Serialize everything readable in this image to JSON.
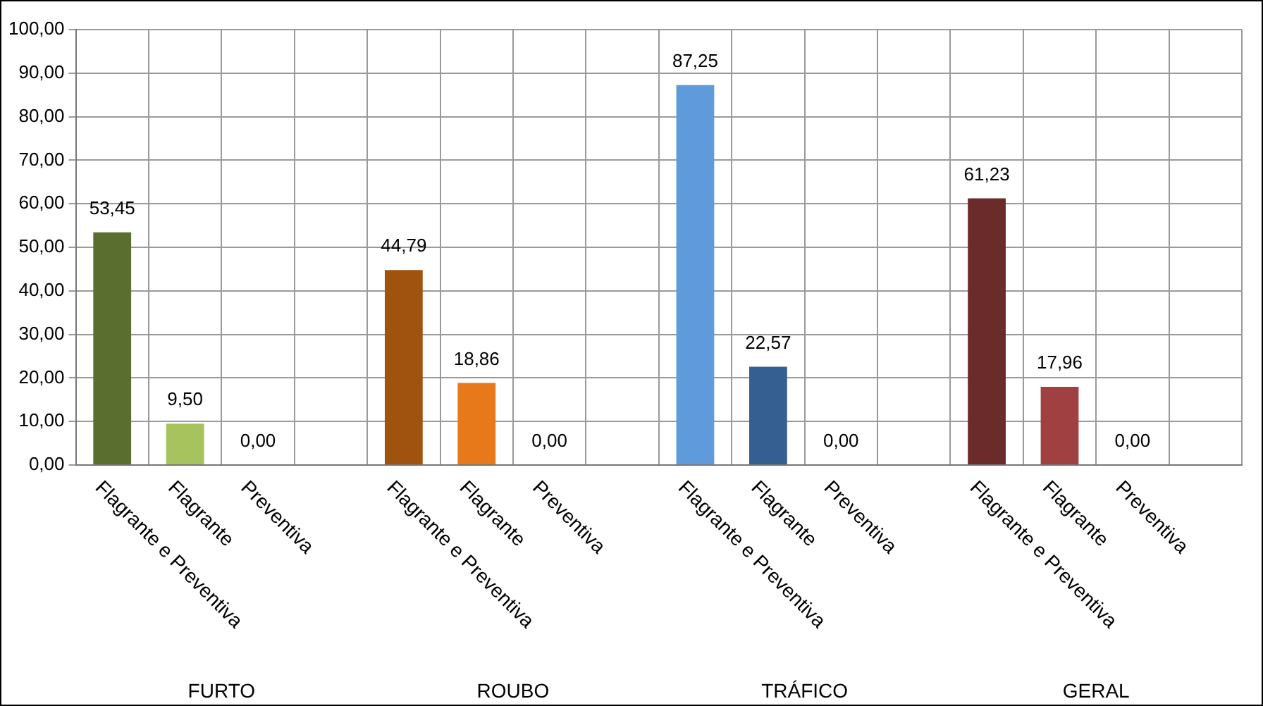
{
  "chart_data": {
    "type": "bar",
    "categories": [
      "Flagrante e Preventiva",
      "Flagrante",
      "Preventiva",
      null,
      "Flagrante e Preventiva",
      "Flagrante",
      "Preventiva",
      null,
      "Flagrante e Preventiva",
      "Flagrante",
      "Preventiva",
      null,
      "Flagrante e Preventiva",
      "Flagrante",
      "Preventiva",
      null
    ],
    "values": [
      53.45,
      9.5,
      0,
      null,
      44.79,
      18.86,
      0,
      null,
      87.25,
      22.57,
      0,
      null,
      61.23,
      17.96,
      0,
      null
    ],
    "value_labels": [
      "53,45",
      "9,50",
      "0,00",
      null,
      "44,79",
      "18,86",
      "0,00",
      null,
      "87,25",
      "22,57",
      "0,00",
      null,
      "61,23",
      "17,96",
      "0,00",
      null
    ],
    "colors": [
      "#5a6e2f",
      "#a6c35e",
      "#7f7f7f",
      null,
      "#a0520f",
      "#e8791a",
      "#7f7f7f",
      null,
      "#5f9bdb",
      "#365f91",
      "#7f7f7f",
      null,
      "#6b2b2b",
      "#a04040",
      "#7f7f7f",
      null
    ],
    "annotations": [
      "FURTO",
      "ROUBO",
      "TRÁFICO",
      "GERAL"
    ],
    "ylim": [
      0,
      100
    ],
    "yticks": [
      {
        "value": 0,
        "label": "0,00"
      },
      {
        "value": 10,
        "label": "10,00"
      },
      {
        "value": 20,
        "label": "20,00"
      },
      {
        "value": 30,
        "label": "30,00"
      },
      {
        "value": 40,
        "label": "40,00"
      },
      {
        "value": 50,
        "label": "50,00"
      },
      {
        "value": 60,
        "label": "60,00"
      },
      {
        "value": 70,
        "label": "70,00"
      },
      {
        "value": 80,
        "label": "80,00"
      },
      {
        "value": 90,
        "label": "90,00"
      },
      {
        "value": 100,
        "label": "100,00"
      }
    ],
    "grid": true,
    "legend": false
  }
}
